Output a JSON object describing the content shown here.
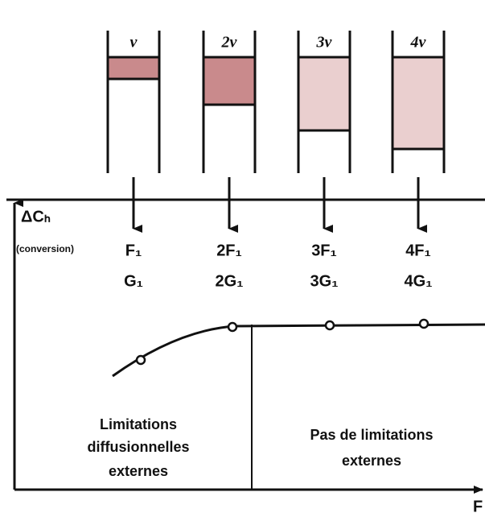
{
  "tubes": [
    {
      "label": "v"
    },
    {
      "label": "2v"
    },
    {
      "label": "3v"
    },
    {
      "label": "4v"
    }
  ],
  "columns": [
    {
      "top": "F₁",
      "bottom": "G₁"
    },
    {
      "top": "2F₁",
      "bottom": "2G₁"
    },
    {
      "top": "3F₁",
      "bottom": "3G₁"
    },
    {
      "top": "4F₁",
      "bottom": "4G₁"
    }
  ],
  "axes": {
    "y_label": "ΔCₕ",
    "y_sublabel": "(conversion)",
    "x_label": "F"
  },
  "regions": [
    {
      "lines": [
        "Limitations",
        "diffusionnelles",
        "externes"
      ]
    },
    {
      "lines": [
        "Pas de limitations",
        "externes"
      ]
    }
  ]
}
